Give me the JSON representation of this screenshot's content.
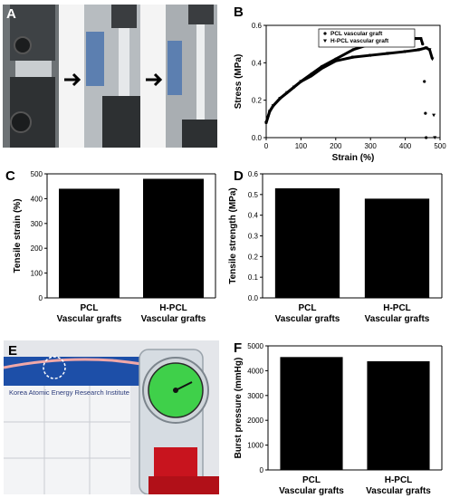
{
  "panels": {
    "a": "A",
    "b": "B",
    "c": "C",
    "d": "D",
    "e": "E",
    "f": "F"
  },
  "photo_e": {
    "sign_text": "Korea Atomic Energy Research Institute"
  },
  "colors": {
    "bar": "#000000",
    "background": "#ffffff",
    "gauge_face": "#3fd04a",
    "liquid": "#c8141e"
  },
  "chart_data": [
    {
      "id": "B",
      "type": "line",
      "xlabel": "Strain (%)",
      "ylabel": "Stress (MPa)",
      "xlim": [
        0,
        500
      ],
      "ylim": [
        0.0,
        0.6
      ],
      "xticks": [
        0,
        100,
        200,
        300,
        400,
        500
      ],
      "yticks": [
        0.0,
        0.2,
        0.4,
        0.6
      ],
      "ytick_labels": [
        "0.0",
        "0.2",
        "0.4",
        "0.6"
      ],
      "legend_position": "top",
      "series": [
        {
          "name": "PCL vascular graft",
          "marker": "circle",
          "x": [
            0,
            10,
            20,
            40,
            60,
            80,
            100,
            130,
            160,
            200,
            250,
            300,
            350,
            400,
            430,
            445,
            450,
            455,
            458,
            460
          ],
          "y": [
            0.08,
            0.14,
            0.17,
            0.21,
            0.24,
            0.27,
            0.3,
            0.34,
            0.38,
            0.42,
            0.47,
            0.5,
            0.51,
            0.52,
            0.53,
            0.53,
            0.5,
            0.3,
            0.13,
            0.0
          ]
        },
        {
          "name": "H-PCL vascular graft",
          "marker": "triangle",
          "x": [
            0,
            10,
            20,
            40,
            60,
            80,
            100,
            130,
            160,
            200,
            250,
            300,
            350,
            400,
            440,
            460,
            470,
            478,
            482,
            485
          ],
          "y": [
            0.08,
            0.14,
            0.17,
            0.21,
            0.24,
            0.27,
            0.3,
            0.33,
            0.37,
            0.41,
            0.43,
            0.44,
            0.45,
            0.46,
            0.47,
            0.48,
            0.47,
            0.42,
            0.12,
            0.0
          ]
        }
      ]
    },
    {
      "id": "C",
      "type": "bar",
      "categories": [
        "PCL\nVascular grafts",
        "H-PCL\nVascular grafts"
      ],
      "category_lines": [
        [
          "PCL",
          "Vascular grafts"
        ],
        [
          "H-PCL",
          "Vascular grafts"
        ]
      ],
      "values": [
        440,
        480
      ],
      "ylabel": "Tensile strain (%)",
      "ylim": [
        0,
        500
      ],
      "yticks": [
        0,
        100,
        200,
        300,
        400,
        500
      ]
    },
    {
      "id": "D",
      "type": "bar",
      "categories": [
        "PCL\nVascular grafts",
        "H-PCL\nVascular grafts"
      ],
      "category_lines": [
        [
          "PCL",
          "Vascular grafts"
        ],
        [
          "H-PCL",
          "Vascular grafts"
        ]
      ],
      "values": [
        0.53,
        0.48
      ],
      "ylabel": "Tensile strength (MPa)",
      "ylim": [
        0.0,
        0.6
      ],
      "yticks": [
        0.0,
        0.1,
        0.2,
        0.3,
        0.4,
        0.5,
        0.6
      ],
      "ytick_labels": [
        "0.0",
        "0.1",
        "0.2",
        "0.3",
        "0.4",
        "0.5",
        "0.6"
      ]
    },
    {
      "id": "F",
      "type": "bar",
      "categories": [
        "PCL\nVascular grafts",
        "H-PCL\nVascular grafts"
      ],
      "category_lines": [
        [
          "PCL",
          "Vascular grafts"
        ],
        [
          "H-PCL",
          "Vascular grafts"
        ]
      ],
      "values": [
        4550,
        4380
      ],
      "ylabel": "Burst pressure (mmHg)",
      "ylim": [
        0,
        5000
      ],
      "yticks": [
        0,
        1000,
        2000,
        3000,
        4000,
        5000
      ]
    }
  ]
}
